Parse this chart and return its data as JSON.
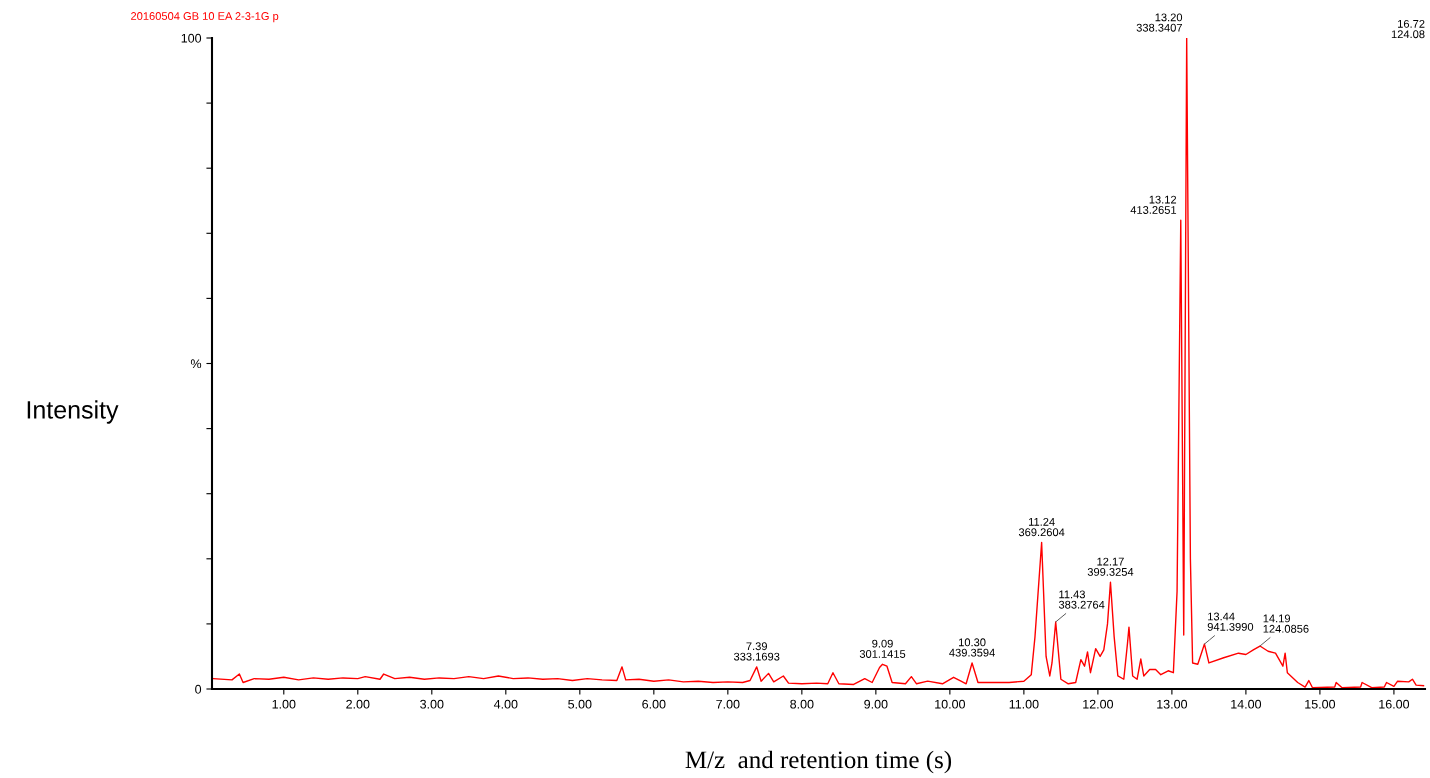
{
  "chart_data": {
    "type": "line",
    "title": "20160504 GB 10 EA 2-3-1G p",
    "xlabel": "M/z  and retention time (s)",
    "ylabel": "Intensity",
    "xlim": [
      0.03,
      16.42
    ],
    "ylim": [
      0,
      100
    ],
    "xticks": [
      {
        "value": 1,
        "label": "1.00"
      },
      {
        "value": 2,
        "label": "2.00"
      },
      {
        "value": 3,
        "label": "3.00"
      },
      {
        "value": 4,
        "label": "4.00"
      },
      {
        "value": 5,
        "label": "5.00"
      },
      {
        "value": 6,
        "label": "6.00"
      },
      {
        "value": 7,
        "label": "7.00"
      },
      {
        "value": 8,
        "label": "8.00"
      },
      {
        "value": 9,
        "label": "9.00"
      },
      {
        "value": 10,
        "label": "10.00"
      },
      {
        "value": 11,
        "label": "11.00"
      },
      {
        "value": 12,
        "label": "12.00"
      },
      {
        "value": 13,
        "label": "13.00"
      },
      {
        "value": 14,
        "label": "14.00"
      },
      {
        "value": 15,
        "label": "15.00"
      },
      {
        "value": 16,
        "label": "16.00"
      }
    ],
    "yticks": [
      0,
      {
        "value": 10,
        "label": null
      },
      {
        "value": 20,
        "label": null
      },
      {
        "value": 30,
        "label": null
      },
      {
        "value": 40,
        "label": null
      },
      {
        "value": 50,
        "label": "%"
      },
      {
        "value": 60,
        "label": null
      },
      {
        "value": 70,
        "label": null
      },
      {
        "value": 80,
        "label": null
      },
      {
        "value": 90,
        "label": null
      },
      100
    ],
    "grid": false,
    "marker": "none",
    "line_style": "solid",
    "series": [
      {
        "color": "#ff0000",
        "x": [
          0.05,
          0.3,
          0.4,
          0.45,
          0.6,
          0.8,
          1.0,
          1.2,
          1.4,
          1.6,
          1.8,
          2.0,
          2.1,
          2.3,
          2.35,
          2.5,
          2.7,
          2.9,
          3.1,
          3.3,
          3.5,
          3.7,
          3.9,
          4.1,
          4.3,
          4.5,
          4.7,
          4.9,
          5.1,
          5.3,
          5.5,
          5.57,
          5.62,
          5.8,
          6.0,
          6.2,
          6.4,
          6.6,
          6.8,
          7.0,
          7.2,
          7.3,
          7.39,
          7.45,
          7.55,
          7.62,
          7.75,
          7.82,
          8.0,
          8.2,
          8.35,
          8.42,
          8.5,
          8.7,
          8.85,
          8.95,
          9.05,
          9.09,
          9.15,
          9.22,
          9.4,
          9.48,
          9.55,
          9.7,
          9.9,
          10.05,
          10.15,
          10.22,
          10.3,
          10.38,
          10.6,
          10.8,
          11.0,
          11.1,
          11.15,
          11.24,
          11.3,
          11.35,
          11.38,
          11.43,
          11.5,
          11.6,
          11.7,
          11.77,
          11.82,
          11.86,
          11.9,
          11.97,
          12.03,
          12.08,
          12.13,
          12.17,
          12.22,
          12.27,
          12.35,
          12.4,
          12.42,
          12.47,
          12.53,
          12.58,
          12.62,
          12.7,
          12.78,
          12.85,
          12.95,
          13.02,
          13.07,
          13.12,
          13.16,
          13.2,
          13.25,
          13.28,
          13.35,
          13.44,
          13.5,
          13.7,
          13.9,
          14.0,
          14.1,
          14.19,
          14.3,
          14.4,
          14.5,
          14.53,
          14.56,
          14.7,
          14.8,
          14.85,
          14.9,
          15.2,
          15.22,
          15.3,
          15.55,
          15.57,
          15.7,
          15.87,
          15.9,
          16.0,
          16.05,
          16.2,
          16.25,
          16.3,
          16.4
        ],
        "values": [
          1.6,
          1.4,
          2.3,
          1.0,
          1.6,
          1.5,
          1.8,
          1.4,
          1.7,
          1.5,
          1.7,
          1.6,
          1.9,
          1.5,
          2.3,
          1.6,
          1.8,
          1.5,
          1.7,
          1.6,
          1.9,
          1.6,
          2.0,
          1.6,
          1.7,
          1.5,
          1.6,
          1.3,
          1.6,
          1.4,
          1.3,
          3.4,
          1.4,
          1.5,
          1.2,
          1.4,
          1.1,
          1.2,
          1.0,
          1.1,
          1.0,
          1.3,
          3.4,
          1.2,
          2.4,
          1.1,
          2.0,
          0.9,
          0.8,
          0.9,
          0.8,
          2.5,
          0.8,
          0.7,
          1.6,
          1.0,
          3.3,
          3.8,
          3.5,
          1.0,
          0.8,
          1.9,
          0.8,
          1.2,
          0.8,
          1.8,
          1.2,
          0.8,
          4.0,
          1.0,
          1.0,
          1.0,
          1.2,
          2.2,
          8.0,
          22.5,
          5.0,
          2.0,
          4.0,
          10.3,
          1.5,
          0.8,
          1.0,
          4.5,
          3.5,
          5.7,
          2.5,
          6.2,
          5.0,
          6.0,
          10.0,
          16.4,
          8.0,
          2.0,
          1.5,
          7.0,
          9.5,
          2.0,
          1.5,
          4.6,
          2.0,
          3.0,
          3.0,
          2.2,
          2.8,
          2.5,
          15.0,
          72.0,
          8.3,
          100,
          20.0,
          4.0,
          3.8,
          6.9,
          4.0,
          4.8,
          5.5,
          5.3,
          6.0,
          6.6,
          5.8,
          5.5,
          3.5,
          5.5,
          2.5,
          1.0,
          0.3,
          1.3,
          0.2,
          0.3,
          1.0,
          0.2,
          0.3,
          1.0,
          0.2,
          0.3,
          1.0,
          0.4,
          1.2,
          1.1,
          1.5,
          0.6,
          0.5
        ]
      }
    ],
    "annotations": [
      {
        "text": "7.39\n333.1693",
        "x": 7.39,
        "y": 3.4
      },
      {
        "text": "9.09\n301.1415",
        "x": 9.09,
        "y": 3.8
      },
      {
        "text": "10.30\n439.3594",
        "x": 10.3,
        "y": 4.0
      },
      {
        "text": "11.24\n369.2604",
        "x": 11.24,
        "y": 22.5
      },
      {
        "text": "11.43\n383.2764",
        "x": 11.43,
        "y": 10.3
      },
      {
        "text": "12.17\n399.3254",
        "x": 12.17,
        "y": 16.4
      },
      {
        "text": "13.12\n413.2651",
        "x": 13.12,
        "y": 72.0
      },
      {
        "text": "13.20\n338.3407",
        "x": 13.2,
        "y": 100
      },
      {
        "text": "13.44\n941.3990",
        "x": 13.44,
        "y": 6.9
      },
      {
        "text": "14.19\n124.0856",
        "x": 14.19,
        "y": 6.6
      },
      "16.72\n124.08"
    ]
  }
}
